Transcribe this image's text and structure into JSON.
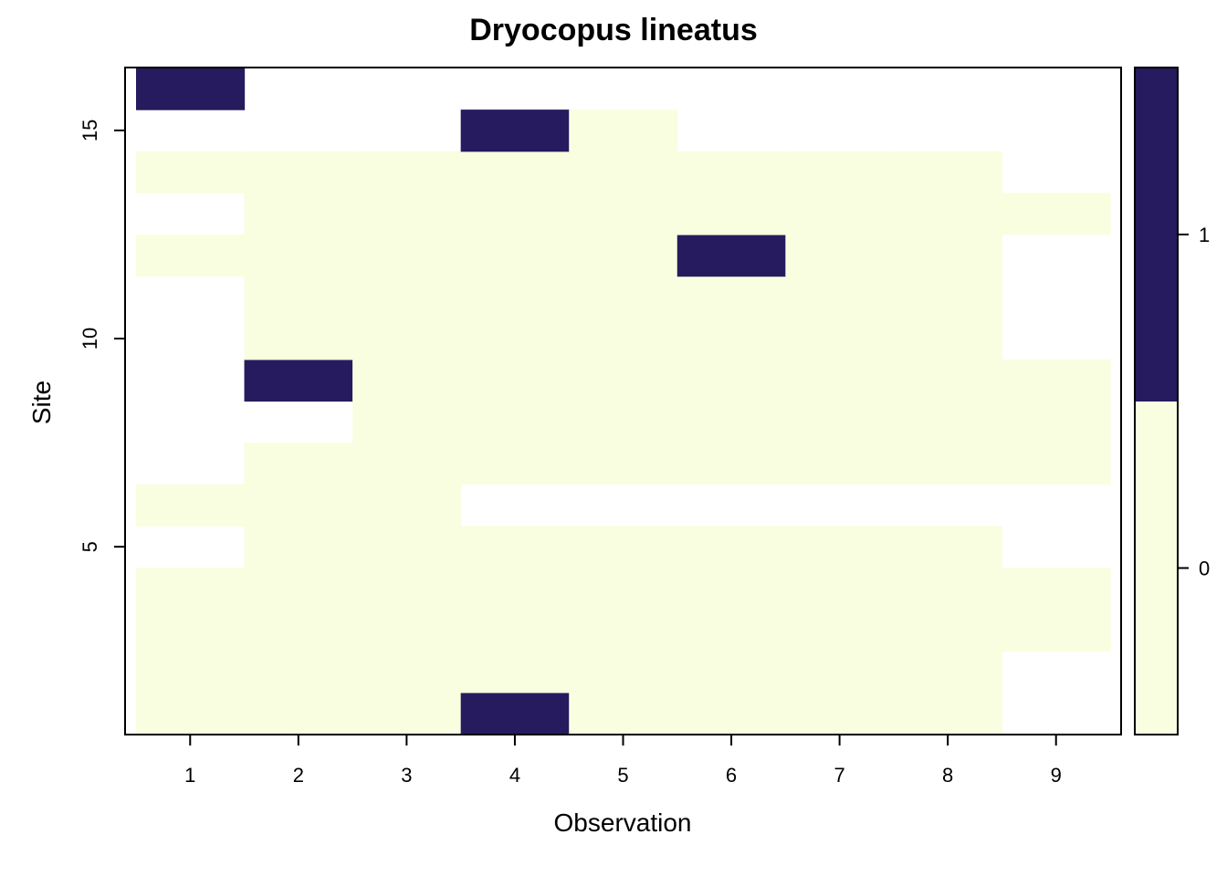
{
  "chart_data": {
    "type": "heatmap",
    "title": "Dryocopus lineatus",
    "xlabel": "Observation",
    "ylabel": "Site",
    "x_ticks": [
      1,
      2,
      3,
      4,
      5,
      6,
      7,
      8,
      9
    ],
    "y_ticks": [
      5,
      10,
      15
    ],
    "xlim": [
      0.5,
      9.5
    ],
    "ylim": [
      0.5,
      16.5
    ],
    "legend": {
      "position": "right",
      "ticks": [
        0,
        1
      ]
    },
    "colors": {
      "0": "#fafee0",
      "1": "#261b5e",
      "missing": "#ffffff"
    },
    "rows": [
      {
        "site": 1,
        "values": [
          0,
          0,
          0,
          1,
          0,
          0,
          0,
          0,
          null
        ]
      },
      {
        "site": 2,
        "values": [
          0,
          0,
          0,
          0,
          0,
          0,
          0,
          0,
          null
        ]
      },
      {
        "site": 3,
        "values": [
          0,
          0,
          0,
          0,
          0,
          0,
          0,
          0,
          0
        ]
      },
      {
        "site": 4,
        "values": [
          0,
          0,
          0,
          0,
          0,
          0,
          0,
          0,
          0
        ]
      },
      {
        "site": 5,
        "values": [
          null,
          0,
          0,
          0,
          0,
          0,
          0,
          0,
          null
        ]
      },
      {
        "site": 6,
        "values": [
          0,
          0,
          0,
          null,
          null,
          null,
          null,
          null,
          null
        ]
      },
      {
        "site": 7,
        "values": [
          null,
          0,
          0,
          0,
          0,
          0,
          0,
          0,
          0
        ]
      },
      {
        "site": 8,
        "values": [
          null,
          null,
          0,
          0,
          0,
          0,
          0,
          0,
          0
        ]
      },
      {
        "site": 9,
        "values": [
          null,
          1,
          0,
          0,
          0,
          0,
          0,
          0,
          0
        ]
      },
      {
        "site": 10,
        "values": [
          null,
          0,
          0,
          0,
          0,
          0,
          0,
          0,
          null
        ]
      },
      {
        "site": 11,
        "values": [
          null,
          0,
          0,
          0,
          0,
          0,
          0,
          0,
          null
        ]
      },
      {
        "site": 12,
        "values": [
          0,
          0,
          0,
          0,
          0,
          1,
          0,
          0,
          null
        ]
      },
      {
        "site": 13,
        "values": [
          null,
          0,
          0,
          0,
          0,
          0,
          0,
          0,
          0
        ]
      },
      {
        "site": 14,
        "values": [
          0,
          0,
          0,
          0,
          0,
          0,
          0,
          0,
          null
        ]
      },
      {
        "site": 15,
        "values": [
          null,
          null,
          null,
          1,
          0,
          null,
          null,
          null,
          null
        ]
      },
      {
        "site": 16,
        "values": [
          1,
          null,
          null,
          null,
          null,
          null,
          null,
          null,
          null
        ]
      }
    ]
  }
}
